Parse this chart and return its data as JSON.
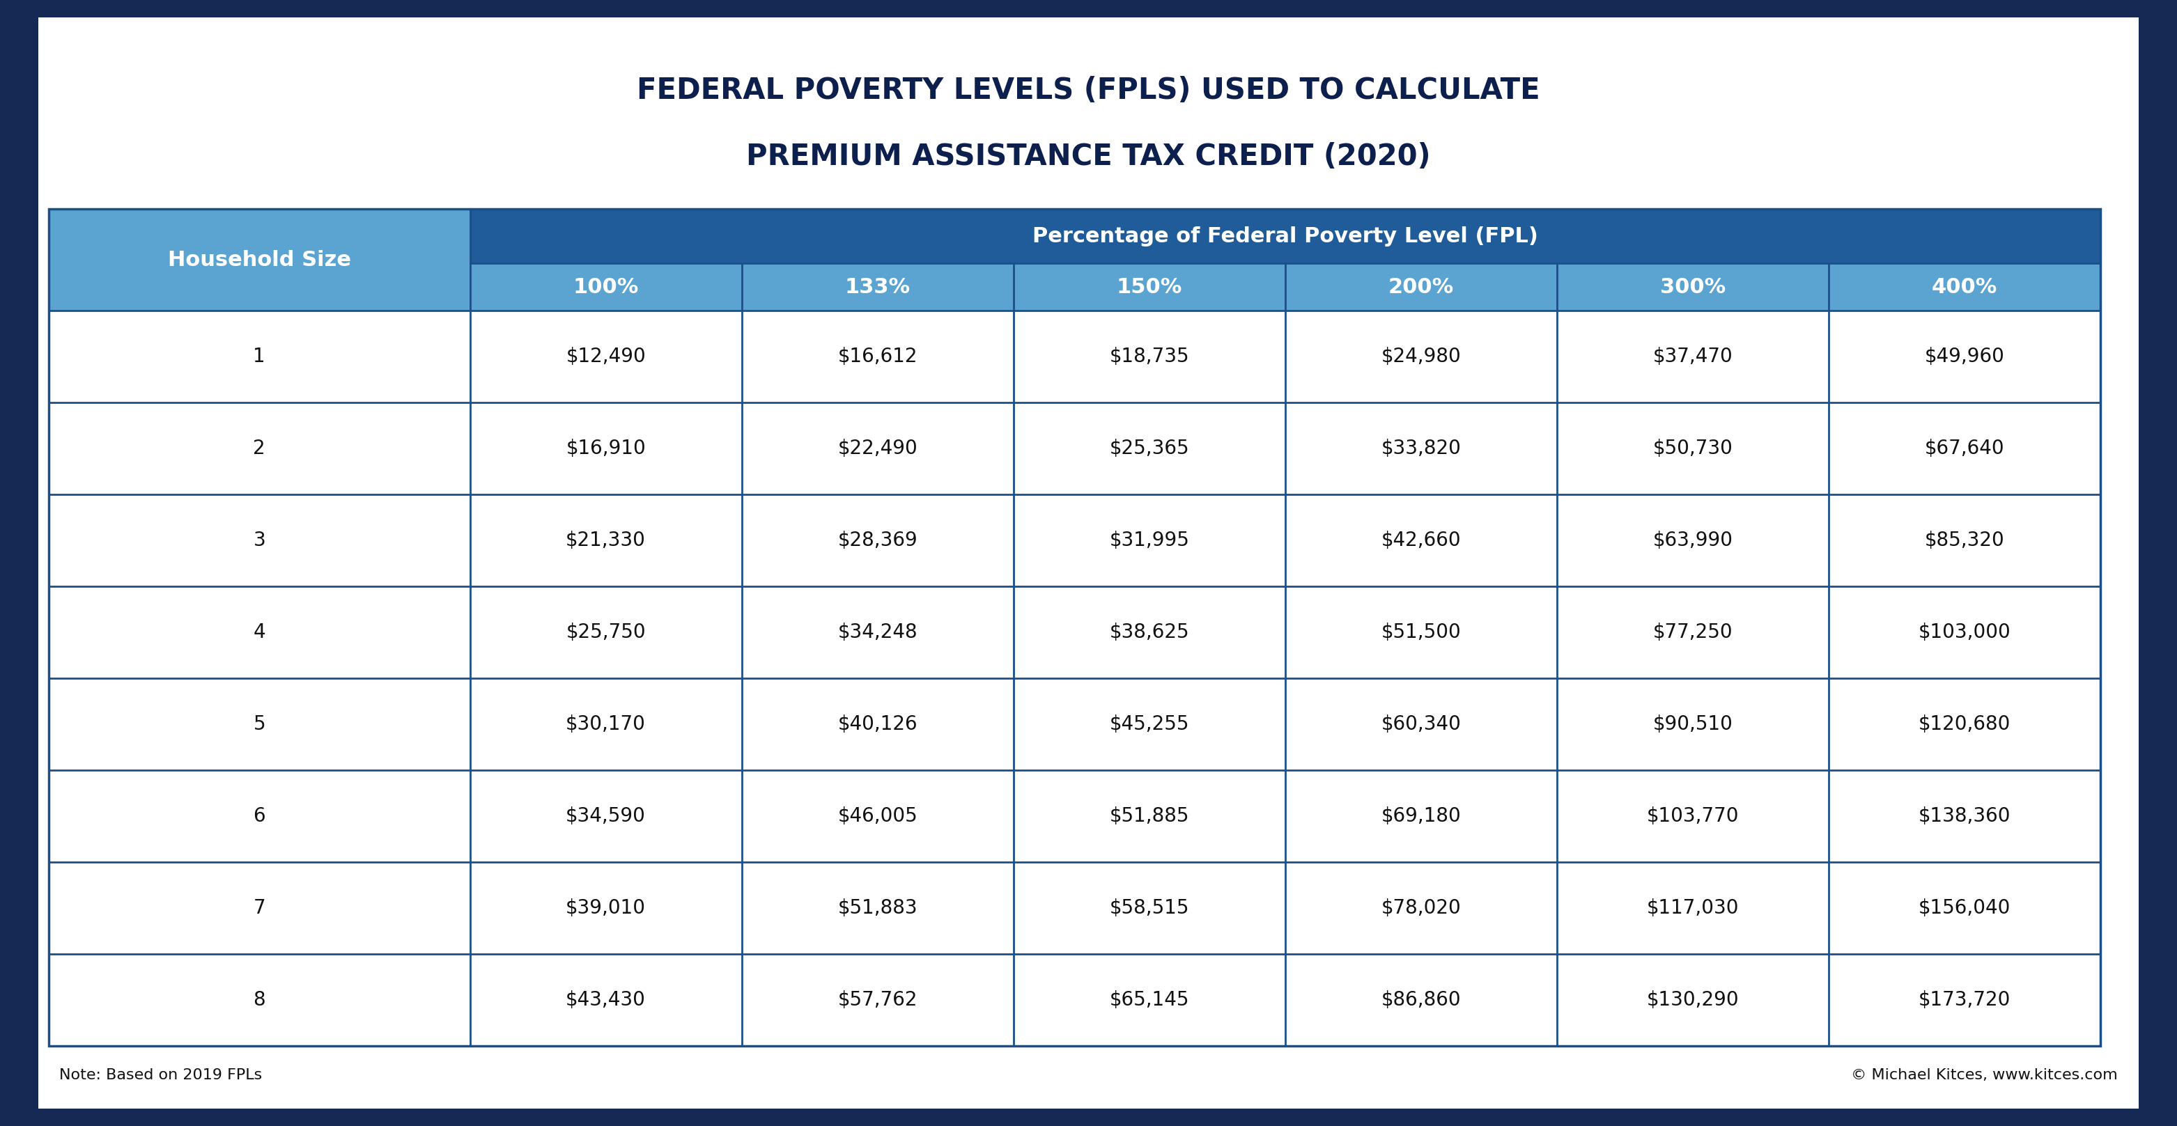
{
  "title_line1": "FEDERAL POVERTY LEVELS (FPLS) USED TO CALCULATE",
  "title_line2": "PREMIUM ASSISTANCE TAX CREDIT (2020)",
  "title_color": "#0d1f4c",
  "bg_color": "#ffffff",
  "outer_bg_color": "#162955",
  "header_row1_bg": "#1f5c99",
  "header_row1_text": "Percentage of Federal Poverty Level (FPL)",
  "header_row2_bg": "#5ba3d0",
  "household_col_bg": "#5ba3d0",
  "col_headers": [
    "Household Size",
    "100%",
    "133%",
    "150%",
    "200%",
    "300%",
    "400%"
  ],
  "rows": [
    [
      "1",
      "$12,490",
      "$16,612",
      "$18,735",
      "$24,980",
      "$37,470",
      "$49,960"
    ],
    [
      "2",
      "$16,910",
      "$22,490",
      "$25,365",
      "$33,820",
      "$50,730",
      "$67,640"
    ],
    [
      "3",
      "$21,330",
      "$28,369",
      "$31,995",
      "$42,660",
      "$63,990",
      "$85,320"
    ],
    [
      "4",
      "$25,750",
      "$34,248",
      "$38,625",
      "$51,500",
      "$77,250",
      "$103,000"
    ],
    [
      "5",
      "$30,170",
      "$40,126",
      "$45,255",
      "$60,340",
      "$90,510",
      "$120,680"
    ],
    [
      "6",
      "$34,590",
      "$46,005",
      "$51,885",
      "$69,180",
      "$103,770",
      "$138,360"
    ],
    [
      "7",
      "$39,010",
      "$51,883",
      "$58,515",
      "$78,020",
      "$117,030",
      "$156,040"
    ],
    [
      "8",
      "$43,430",
      "$57,762",
      "$65,145",
      "$86,860",
      "$130,290",
      "$173,720"
    ]
  ],
  "cell_bg_white": "#ffffff",
  "cell_text_color": "#111111",
  "grid_color": "#1a4f8a",
  "note_left": "Note: Based on 2019 FPLs",
  "note_right_plain": "© Michael Kitces, ",
  "note_right_link": "www.kitces.com",
  "note_right_link_color": "#2563ae",
  "note_text_color": "#111111",
  "footer_bg": "#162955",
  "col_widths_rel": [
    1.55,
    1.0,
    1.0,
    1.0,
    1.0,
    1.0,
    1.0
  ],
  "title_fontsize": 30,
  "header1_fontsize": 22,
  "header2_fontsize": 22,
  "data_fontsize": 20,
  "note_fontsize": 16
}
